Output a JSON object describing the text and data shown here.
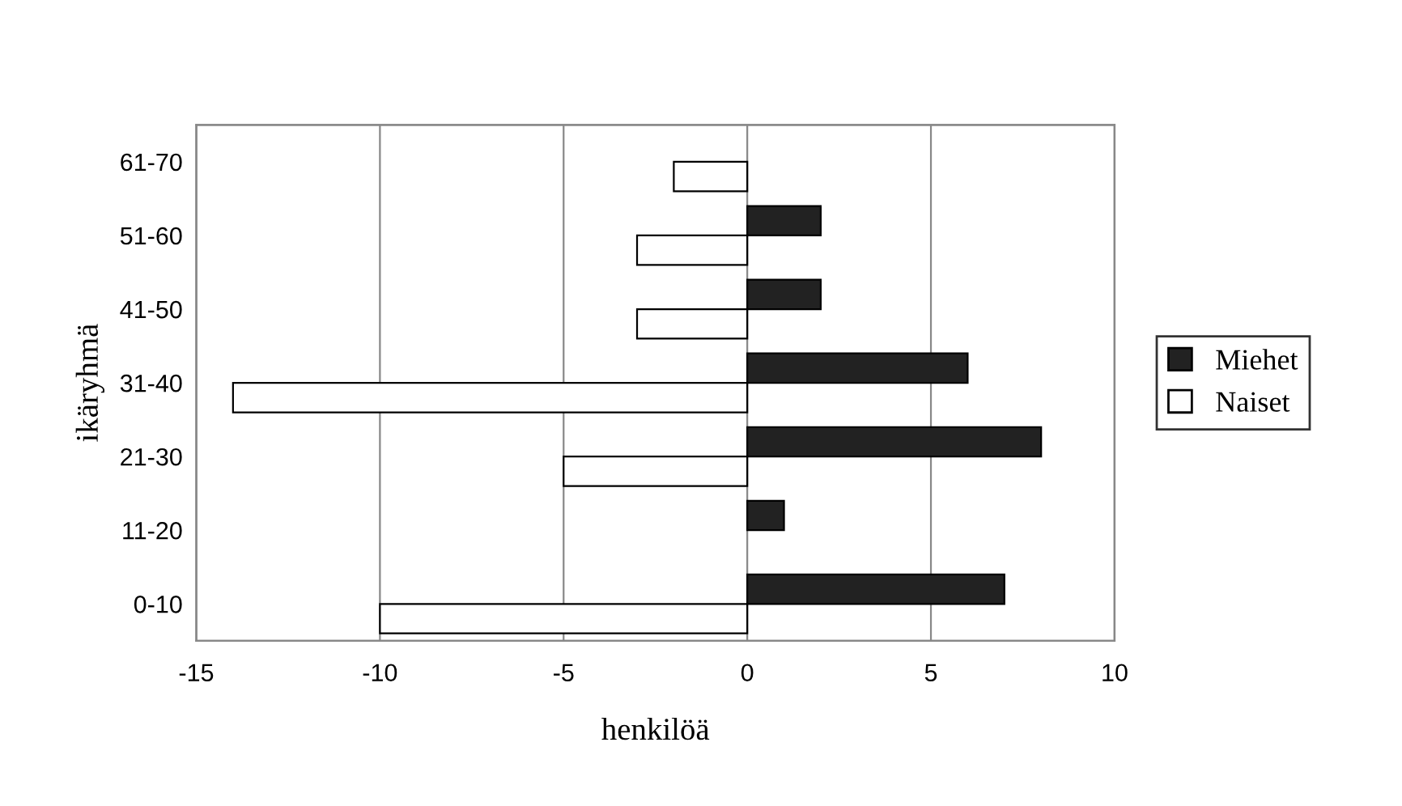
{
  "chart_data": {
    "type": "bar",
    "orientation": "horizontal",
    "xlabel": "henkilöä",
    "ylabel": "ikäryhmä",
    "categories": [
      "61-70",
      "51-60",
      "41-50",
      "31-40",
      "21-30",
      "11-20",
      "0-10"
    ],
    "series": [
      {
        "name": "Miehet",
        "color": "#222222",
        "values": [
          0,
          2,
          2,
          6,
          8,
          1,
          7
        ]
      },
      {
        "name": "Naiset",
        "color": "#ffffff",
        "values": [
          -2,
          -3,
          -3,
          -14,
          -5,
          0,
          -10
        ]
      }
    ],
    "xlim": [
      -15,
      10
    ],
    "xticks": [
      -15,
      -10,
      -5,
      0,
      5,
      10
    ],
    "grid": "x",
    "legend": "right"
  }
}
